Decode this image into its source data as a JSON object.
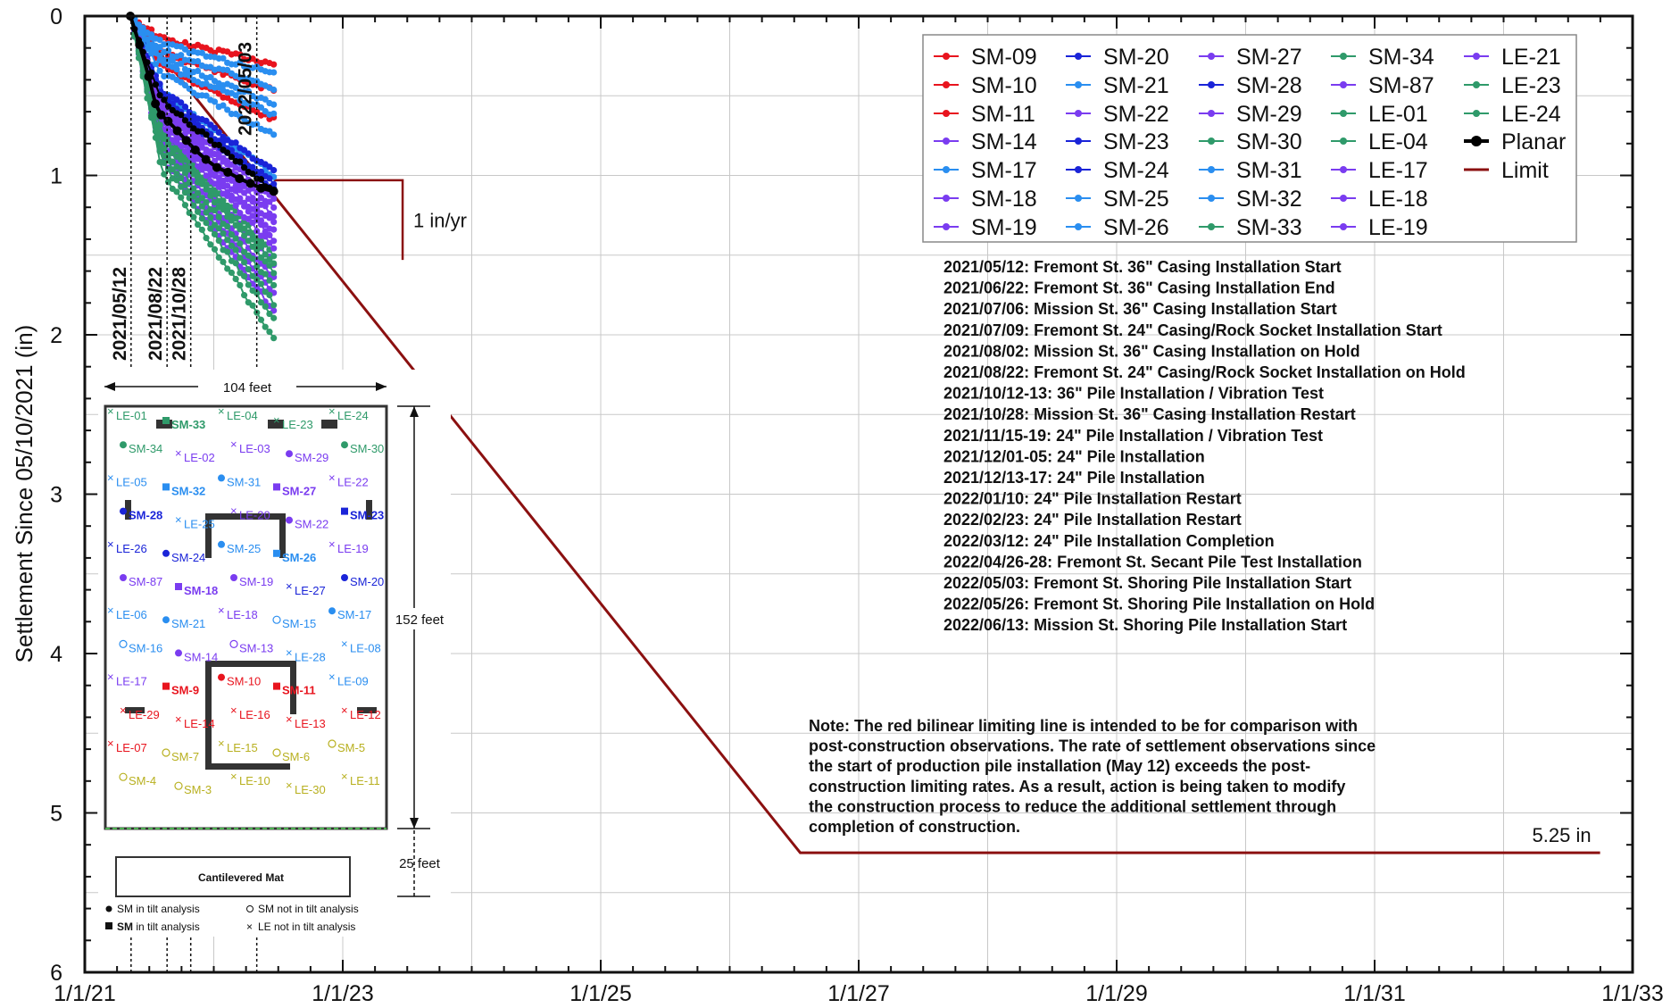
{
  "chart_data": {
    "type": "line",
    "ylabel": "Settlement Since 05/10/2021 (in)",
    "xlabel": "",
    "x_ticks": [
      "1/1/21",
      "1/1/23",
      "1/1/25",
      "1/1/27",
      "1/1/29",
      "1/1/31",
      "1/1/33"
    ],
    "y_ticks": [
      "0",
      "1",
      "2",
      "3",
      "4",
      "5",
      "6"
    ],
    "xlim": [
      "2021-01-01",
      "2033-01-01"
    ],
    "ylim": [
      0,
      6
    ],
    "y_inverted": true,
    "grid": true,
    "legend_position": "top-right",
    "series": [
      {
        "name": "SM-09",
        "color": "#e8141e",
        "end": 0.47
      },
      {
        "name": "SM-10",
        "color": "#e8141e",
        "end": 0.65
      },
      {
        "name": "SM-11",
        "color": "#e8141e",
        "end": 0.3
      },
      {
        "name": "SM-14",
        "color": "#7a3cf0",
        "end": 1.3
      },
      {
        "name": "SM-17",
        "color": "#2a8ef0",
        "end": 1.0
      },
      {
        "name": "SM-18",
        "color": "#7a3cf0",
        "end": 1.85
      },
      {
        "name": "SM-19",
        "color": "#7a3cf0",
        "end": 1.75
      },
      {
        "name": "SM-20",
        "color": "#1a24d8",
        "end": 1.05
      },
      {
        "name": "SM-21",
        "color": "#2a8ef0",
        "end": 0.62
      },
      {
        "name": "SM-22",
        "color": "#7a3cf0",
        "end": 1.4
      },
      {
        "name": "SM-23",
        "color": "#1a24d8",
        "end": 1.1
      },
      {
        "name": "SM-24",
        "color": "#1a24d8",
        "end": 0.98
      },
      {
        "name": "SM-25",
        "color": "#2a8ef0",
        "end": 0.55
      },
      {
        "name": "SM-26",
        "color": "#2a8ef0",
        "end": 0.36
      },
      {
        "name": "SM-27",
        "color": "#7a3cf0",
        "end": 1.55
      },
      {
        "name": "SM-28",
        "color": "#1a24d8",
        "end": 1.08
      },
      {
        "name": "SM-29",
        "color": "#7a3cf0",
        "end": 1.65
      },
      {
        "name": "SM-30",
        "color": "#2f9a6a",
        "end": 1.5
      },
      {
        "name": "SM-31",
        "color": "#2a8ef0",
        "end": 0.75
      },
      {
        "name": "SM-32",
        "color": "#2a8ef0",
        "end": 0.45
      },
      {
        "name": "SM-33",
        "color": "#2f9a6a",
        "end": 2.02
      },
      {
        "name": "SM-34",
        "color": "#2f9a6a",
        "end": 1.7
      },
      {
        "name": "SM-87",
        "color": "#7a3cf0",
        "end": 1.25
      },
      {
        "name": "LE-01",
        "color": "#2f9a6a",
        "end": 1.9
      },
      {
        "name": "LE-04",
        "color": "#2f9a6a",
        "end": 1.6
      },
      {
        "name": "LE-17",
        "color": "#7a3cf0",
        "end": 1.2
      },
      {
        "name": "LE-18",
        "color": "#7a3cf0",
        "end": 1.35
      },
      {
        "name": "LE-19",
        "color": "#7a3cf0",
        "end": 1.45
      },
      {
        "name": "LE-21",
        "color": "#7a3cf0",
        "end": 1.15
      },
      {
        "name": "LE-23",
        "color": "#2f9a6a",
        "end": 1.8
      },
      {
        "name": "LE-24",
        "color": "#2f9a6a",
        "end": 1.55
      },
      {
        "name": "Planar",
        "color": "#000000",
        "end": 1.1
      },
      {
        "name": "Limit",
        "color": "#8b1010"
      }
    ],
    "planar_points": [
      {
        "x": "2021-05-10",
        "y": 0.0
      },
      {
        "x": "2021-06-05",
        "y": 0.18
      },
      {
        "x": "2021-07-01",
        "y": 0.38
      },
      {
        "x": "2021-07-20",
        "y": 0.55
      },
      {
        "x": "2021-08-05",
        "y": 0.62
      },
      {
        "x": "2021-08-25",
        "y": 0.66
      },
      {
        "x": "2021-09-20",
        "y": 0.72
      },
      {
        "x": "2021-10-15",
        "y": 0.78
      },
      {
        "x": "2021-11-10",
        "y": 0.84
      },
      {
        "x": "2021-12-10",
        "y": 0.9
      },
      {
        "x": "2022-01-10",
        "y": 0.95
      },
      {
        "x": "2022-02-10",
        "y": 0.98
      },
      {
        "x": "2022-03-15",
        "y": 1.02
      },
      {
        "x": "2022-04-15",
        "y": 1.05
      },
      {
        "x": "2022-05-15",
        "y": 1.08
      },
      {
        "x": "2022-06-20",
        "y": 1.1
      }
    ],
    "limit_points": [
      {
        "x": "2021-05-10",
        "y": 0.0
      },
      {
        "x": "2026-07-20",
        "y": 5.25
      },
      {
        "x": "2032-10-01",
        "y": 5.25
      }
    ],
    "slope_triangle": {
      "x_start": "2022-06-20",
      "x_end": "2023-06-20",
      "y_top": 1.03,
      "y_bottom": 1.53,
      "label": "1 in/yr"
    },
    "limit_label": "5.25 in",
    "vertical_markers": [
      {
        "x": "2021-05-12",
        "label": "2021/05/12"
      },
      {
        "x": "2021-08-22",
        "label": "2021/08/22"
      },
      {
        "x": "2021-10-28",
        "label": "2021/10/28"
      },
      {
        "x": "2022-05-03",
        "label": "2022/05/03"
      }
    ],
    "events": [
      "2021/05/12: Fremont St. 36\" Casing Installation Start",
      "2021/06/22: Fremont St. 36\" Casing Installation End",
      "2021/07/06: Mission St.  36\" Casing Installation Start",
      "2021/07/09: Fremont St. 24\" Casing/Rock Socket Installation Start",
      "2021/08/02: Mission St.  36\" Casing Installation on Hold",
      "2021/08/22: Fremont St. 24\" Casing/Rock Socket Installation on Hold",
      "2021/10/12-13: 36\" Pile Installation / Vibration Test",
      "2021/10/28: Mission St.  36\" Casing Installation Restart",
      "2021/11/15-19: 24\" Pile Installation / Vibration Test",
      "2021/12/01-05: 24\" Pile Installation",
      "2021/12/13-17: 24\" Pile Installation",
      "2022/01/10: 24\" Pile Installation Restart",
      "2022/02/23: 24\" Pile Installation Restart",
      "2022/03/12: 24\" Pile Installation Completion",
      "2022/04/26-28: Fremont St. Secant Pile Test Installation",
      "2022/05/03: Fremont St. Shoring Pile Installation Start",
      "2022/05/26: Fremont St. Shoring Pile Installation on Hold",
      "2022/06/13: Mission St. Shoring Pile Installation Start"
    ],
    "note": [
      "Note: The red bilinear limiting line is intended to be for comparison with",
      "post-construction observations. The rate of settlement observations since",
      "the start of production pile installation (May 12) exceeds the post-",
      "construction limiting rates. As a result, action is being taken to modify",
      "the construction process to reduce the additional settlement through",
      "completion of construction."
    ]
  },
  "plan_inset": {
    "width_label": "104 feet",
    "height_label": "152 feet",
    "mat_height_label": "25 feet",
    "mat_label": "Cantilevered Mat",
    "legend": [
      "SM in tilt analysis",
      "SM not in tilt analysis",
      "SM in tilt analysis",
      "LE not in tilt analysis"
    ],
    "legend_bold_prefix": "SM",
    "points": [
      {
        "t": "LE-01",
        "c": "#2f9a6a",
        "b": false,
        "k": "x"
      },
      {
        "t": "SM-33",
        "c": "#2f9a6a",
        "b": true,
        "k": "sq"
      },
      {
        "t": "LE-04",
        "c": "#2f9a6a",
        "b": false,
        "k": "x"
      },
      {
        "t": "LE-23",
        "c": "#2f9a6a",
        "b": false,
        "k": "x"
      },
      {
        "t": "LE-24",
        "c": "#2f9a6a",
        "b": false,
        "k": "x"
      },
      {
        "t": "SM-34",
        "c": "#2f9a6a",
        "b": false,
        "k": "dot"
      },
      {
        "t": "LE-02",
        "c": "#7a3cf0",
        "b": false,
        "k": "x"
      },
      {
        "t": "LE-03",
        "c": "#7a3cf0",
        "b": false,
        "k": "x"
      },
      {
        "t": "SM-29",
        "c": "#7a3cf0",
        "b": false,
        "k": "dot"
      },
      {
        "t": "SM-30",
        "c": "#2f9a6a",
        "b": false,
        "k": "dot"
      },
      {
        "t": "LE-05",
        "c": "#2a8ef0",
        "b": false,
        "k": "x"
      },
      {
        "t": "SM-32",
        "c": "#2a8ef0",
        "b": true,
        "k": "sq"
      },
      {
        "t": "SM-31",
        "c": "#2a8ef0",
        "b": false,
        "k": "dot"
      },
      {
        "t": "SM-27",
        "c": "#7a3cf0",
        "b": true,
        "k": "sq"
      },
      {
        "t": "LE-22",
        "c": "#7a3cf0",
        "b": false,
        "k": "x"
      },
      {
        "t": "SM-28",
        "c": "#1a24d8",
        "b": true,
        "k": "dot"
      },
      {
        "t": "LE-25",
        "c": "#2a8ef0",
        "b": false,
        "k": "x"
      },
      {
        "t": "LE-20",
        "c": "#7a3cf0",
        "b": false,
        "k": "x"
      },
      {
        "t": "SM-22",
        "c": "#7a3cf0",
        "b": false,
        "k": "dot"
      },
      {
        "t": "SM-23",
        "c": "#1a24d8",
        "b": true,
        "k": "sq"
      },
      {
        "t": "LE-26",
        "c": "#1a24d8",
        "b": false,
        "k": "x"
      },
      {
        "t": "SM-24",
        "c": "#1a24d8",
        "b": false,
        "k": "dot"
      },
      {
        "t": "SM-25",
        "c": "#2a8ef0",
        "b": false,
        "k": "dot"
      },
      {
        "t": "SM-26",
        "c": "#2a8ef0",
        "b": true,
        "k": "sq"
      },
      {
        "t": "LE-19",
        "c": "#7a3cf0",
        "b": false,
        "k": "x"
      },
      {
        "t": "SM-87",
        "c": "#7a3cf0",
        "b": false,
        "k": "dot"
      },
      {
        "t": "SM-18",
        "c": "#7a3cf0",
        "b": true,
        "k": "sq"
      },
      {
        "t": "SM-19",
        "c": "#7a3cf0",
        "b": false,
        "k": "dot"
      },
      {
        "t": "LE-27",
        "c": "#1a24d8",
        "b": false,
        "k": "x"
      },
      {
        "t": "SM-20",
        "c": "#1a24d8",
        "b": false,
        "k": "dot"
      },
      {
        "t": "LE-06",
        "c": "#2a8ef0",
        "b": false,
        "k": "x"
      },
      {
        "t": "SM-21",
        "c": "#2a8ef0",
        "b": false,
        "k": "dot"
      },
      {
        "t": "LE-18",
        "c": "#7a3cf0",
        "b": false,
        "k": "x"
      },
      {
        "t": "SM-15",
        "c": "#2a8ef0",
        "b": false,
        "k": "o"
      },
      {
        "t": "SM-17",
        "c": "#2a8ef0",
        "b": false,
        "k": "dot"
      },
      {
        "t": "SM-16",
        "c": "#2a8ef0",
        "b": false,
        "k": "o"
      },
      {
        "t": "SM-14",
        "c": "#7a3cf0",
        "b": false,
        "k": "dot"
      },
      {
        "t": "SM-13",
        "c": "#7a3cf0",
        "b": false,
        "k": "o"
      },
      {
        "t": "LE-28",
        "c": "#2a8ef0",
        "b": false,
        "k": "x"
      },
      {
        "t": "LE-08",
        "c": "#2a8ef0",
        "b": false,
        "k": "x"
      },
      {
        "t": "LE-17",
        "c": "#7a3cf0",
        "b": false,
        "k": "x"
      },
      {
        "t": "SM-9",
        "c": "#e8141e",
        "b": true,
        "k": "sq"
      },
      {
        "t": "SM-10",
        "c": "#e8141e",
        "b": false,
        "k": "dot"
      },
      {
        "t": "SM-11",
        "c": "#e8141e",
        "b": true,
        "k": "sq"
      },
      {
        "t": "LE-09",
        "c": "#2a8ef0",
        "b": false,
        "k": "x"
      },
      {
        "t": "LE-29",
        "c": "#e8141e",
        "b": false,
        "k": "x"
      },
      {
        "t": "LE-14",
        "c": "#e8141e",
        "b": false,
        "k": "x"
      },
      {
        "t": "LE-16",
        "c": "#e8141e",
        "b": false,
        "k": "x"
      },
      {
        "t": "LE-13",
        "c": "#e8141e",
        "b": false,
        "k": "x"
      },
      {
        "t": "LE-12",
        "c": "#e8141e",
        "b": false,
        "k": "x"
      },
      {
        "t": "LE-07",
        "c": "#e8141e",
        "b": false,
        "k": "x"
      },
      {
        "t": "SM-7",
        "c": "#b8b020",
        "b": false,
        "k": "o"
      },
      {
        "t": "LE-15",
        "c": "#b8b020",
        "b": false,
        "k": "x"
      },
      {
        "t": "SM-6",
        "c": "#b8b020",
        "b": false,
        "k": "o"
      },
      {
        "t": "SM-5",
        "c": "#b8b020",
        "b": false,
        "k": "o"
      },
      {
        "t": "SM-4",
        "c": "#b8b020",
        "b": false,
        "k": "o"
      },
      {
        "t": "SM-3",
        "c": "#b8b020",
        "b": false,
        "k": "o"
      },
      {
        "t": "LE-10",
        "c": "#b8b020",
        "b": false,
        "k": "x"
      },
      {
        "t": "LE-30",
        "c": "#b8b020",
        "b": false,
        "k": "x"
      },
      {
        "t": "LE-11",
        "c": "#b8b020",
        "b": false,
        "k": "x"
      }
    ]
  }
}
